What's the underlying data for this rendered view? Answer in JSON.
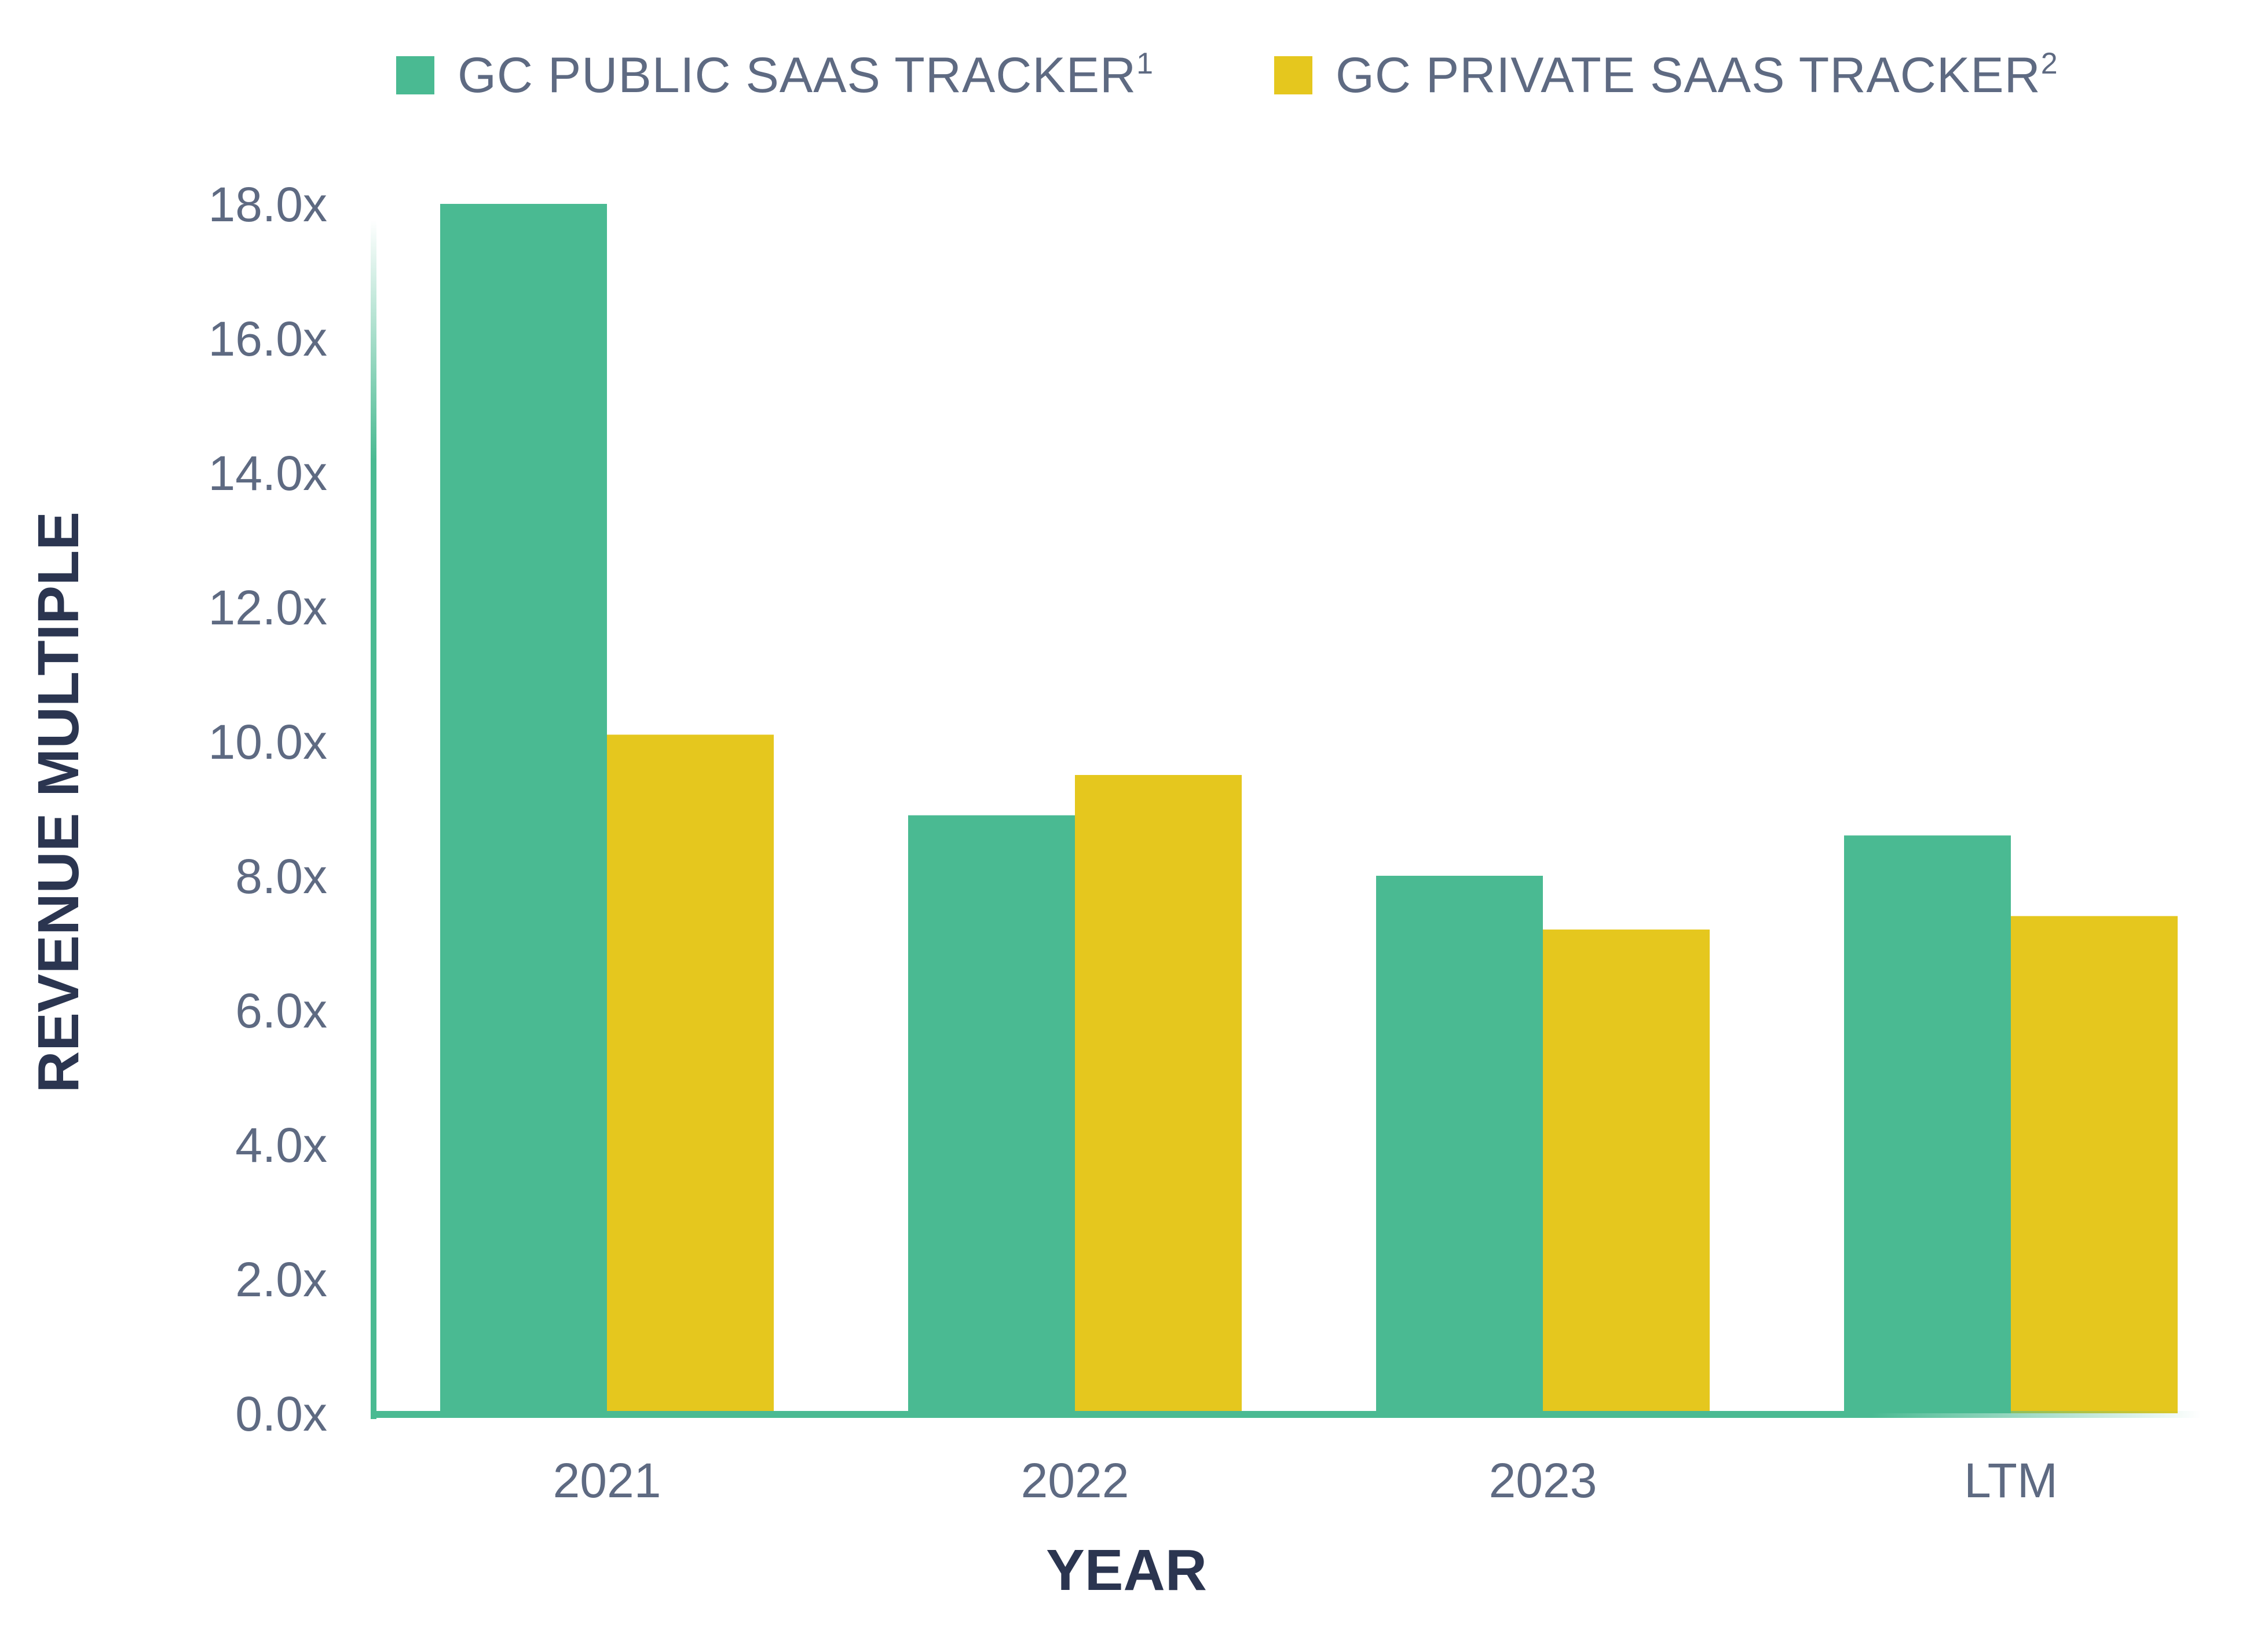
{
  "chart_data": {
    "type": "bar",
    "title": "",
    "xlabel": "YEAR",
    "ylabel": "REVENUE MULTIPLE",
    "categories": [
      "2021",
      "2022",
      "2023",
      "LTM"
    ],
    "ylim": [
      0,
      18
    ],
    "yticks": [
      "0.0x",
      "2.0x",
      "4.0x",
      "6.0x",
      "8.0x",
      "10.0x",
      "12.0x",
      "14.0x",
      "16.0x",
      "18.0x"
    ],
    "ytick_values": [
      0,
      2,
      4,
      6,
      8,
      10,
      12,
      14,
      16,
      18
    ],
    "grid": false,
    "legend_position": "top",
    "series": [
      {
        "name": "GC PUBLIC SAAS TRACKER",
        "superscript": "1",
        "color": "#4aba92",
        "values": [
          18.0,
          8.9,
          8.0,
          8.6
        ]
      },
      {
        "name": "GC PRIVATE SAAS TRACKER",
        "superscript": "2",
        "color": "#e5c71e",
        "values": [
          10.1,
          9.5,
          7.2,
          7.4
        ]
      }
    ]
  },
  "colors": {
    "axis": "#4aba92",
    "tick_text": "#5e6a82",
    "axis_title_text": "#2b3550"
  }
}
